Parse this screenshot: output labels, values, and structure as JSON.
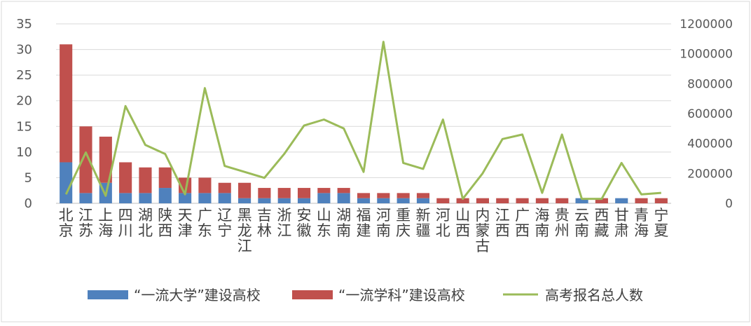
{
  "chart_data": {
    "type": "bar",
    "stacked": true,
    "categories": [
      "北京",
      "江苏",
      "上海",
      "四川",
      "湖北",
      "陕西",
      "天津",
      "广东",
      "辽宁",
      "黑龙江",
      "吉林",
      "浙江",
      "安徽",
      "山东",
      "湖南",
      "福建",
      "河南",
      "重庆",
      "新疆",
      "河北",
      "山西",
      "内蒙古",
      "江西",
      "广西",
      "海南",
      "贵州",
      "云南",
      "西藏",
      "甘肃",
      "青海",
      "宁夏"
    ],
    "series": [
      {
        "name": "“一流大学”建设高校",
        "type": "bar",
        "axis": "left",
        "color": "#4f81bd",
        "values": [
          8,
          2,
          4,
          2,
          2,
          3,
          2,
          2,
          2,
          1,
          1,
          1,
          1,
          2,
          2,
          1,
          1,
          1,
          1,
          0,
          0,
          0,
          0,
          0,
          0,
          0,
          1,
          0,
          1,
          0,
          0
        ]
      },
      {
        "name": "“一流学科”建设高校",
        "type": "bar",
        "axis": "left",
        "color": "#c0504d",
        "values": [
          23,
          13,
          9,
          6,
          5,
          4,
          3,
          3,
          2,
          3,
          2,
          2,
          2,
          1,
          1,
          1,
          1,
          1,
          1,
          1,
          1,
          1,
          1,
          1,
          1,
          1,
          0,
          1,
          0,
          1,
          1
        ]
      },
      {
        "name": "高考报名总人数",
        "type": "line",
        "axis": "right",
        "color": "#9bbb59",
        "values": [
          60000,
          340000,
          50000,
          650000,
          390000,
          330000,
          60000,
          770000,
          250000,
          210000,
          170000,
          330000,
          520000,
          560000,
          500000,
          210000,
          1080000,
          270000,
          230000,
          560000,
          30000,
          200000,
          430000,
          460000,
          70000,
          460000,
          30000,
          30000,
          270000,
          60000,
          70000
        ]
      }
    ],
    "y_left": {
      "ylim": [
        0,
        35
      ],
      "ticks": [
        "0",
        "5",
        "10",
        "15",
        "20",
        "25",
        "30",
        "35"
      ]
    },
    "y_right": {
      "ylim": [
        0,
        1200000
      ],
      "ticks": [
        "0",
        "200000",
        "400000",
        "600000",
        "800000",
        "1000000",
        "1200000"
      ]
    },
    "xlabel": "",
    "ylabel": "",
    "title": "",
    "legend_position": "bottom",
    "gridlines": true,
    "grid_color": "#d9d9d9",
    "axis_text_color": "#595959"
  }
}
